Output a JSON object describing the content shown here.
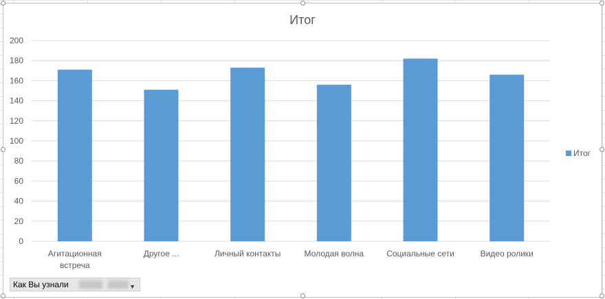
{
  "chart_data": {
    "type": "bar",
    "title": "Итог",
    "categories": [
      "Агитационная встреча",
      "Другое ...",
      "Личный контакты",
      "Молодая волна",
      "Социальные сети",
      "Видео ролики"
    ],
    "category_lines": [
      [
        "Агитационная",
        "встреча"
      ],
      [
        "Другое ..."
      ],
      [
        "Личный контакты"
      ],
      [
        "Молодая волна"
      ],
      [
        "Социальные сети"
      ],
      [
        "Видео ролики"
      ]
    ],
    "series": [
      {
        "name": "Итог",
        "values": [
          171,
          151,
          173,
          156,
          182,
          166
        ],
        "color": "#5b9bd5"
      }
    ],
    "ylim": [
      0,
      200
    ],
    "yticks": [
      0,
      20,
      40,
      60,
      80,
      100,
      120,
      140,
      160,
      180,
      200
    ],
    "grid": true,
    "legend": "right"
  },
  "filter_button": {
    "label": "Как Вы узнали"
  },
  "colors": {
    "bar": "#5b9bd5",
    "grid": "#d9d9d9",
    "text": "#595959"
  }
}
